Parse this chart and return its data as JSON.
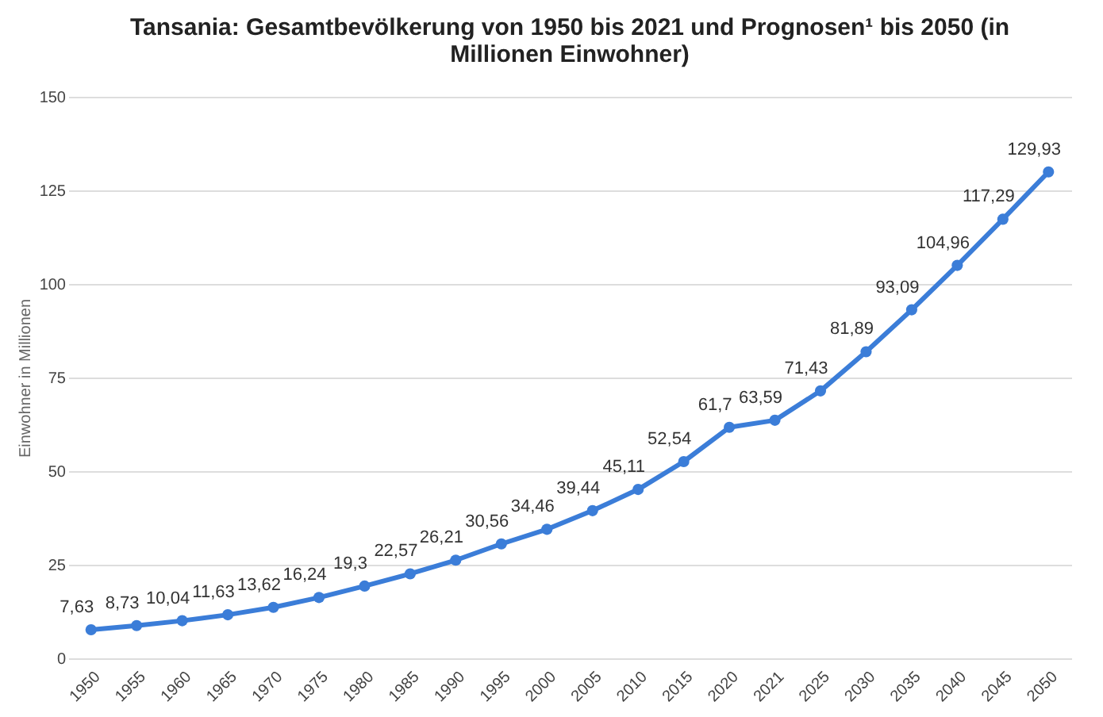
{
  "chart_data": {
    "type": "line",
    "title": "Tansania: Gesamtbevölkerung von 1950 bis 2021 und Prognosen¹ bis 2050 (in Millionen Einwohner)",
    "ylabel": "Einwohner in Millionen",
    "categories": [
      "1950",
      "1955",
      "1960",
      "1965",
      "1970",
      "1975",
      "1980",
      "1985",
      "1990",
      "1995",
      "2000",
      "2005",
      "2010",
      "2015",
      "2020",
      "2021",
      "2025",
      "2030",
      "2035",
      "2040",
      "2045",
      "2050"
    ],
    "series": [
      {
        "color": "#3b7dd8",
        "values": [
          7.63,
          8.73,
          10.04,
          11.63,
          13.62,
          16.24,
          19.3,
          22.57,
          26.21,
          30.56,
          34.46,
          39.44,
          45.11,
          52.54,
          61.7,
          63.59,
          71.43,
          81.89,
          93.09,
          104.96,
          117.29,
          129.93
        ],
        "value_labels": [
          "7,63",
          "8,73",
          "10,04",
          "11,63",
          "13,62",
          "16,24",
          "19,3",
          "22,57",
          "26,21",
          "30,56",
          "34,46",
          "39,44",
          "45,11",
          "52,54",
          "61,7",
          "63,59",
          "71,43",
          "81,89",
          "93,09",
          "104,96",
          "117,29",
          "129,93"
        ]
      }
    ],
    "ylim": [
      0,
      150
    ],
    "yticks": [
      0,
      25,
      50,
      75,
      100,
      125,
      150
    ],
    "grid": "y",
    "marker": "circle",
    "line_style": "solid"
  }
}
